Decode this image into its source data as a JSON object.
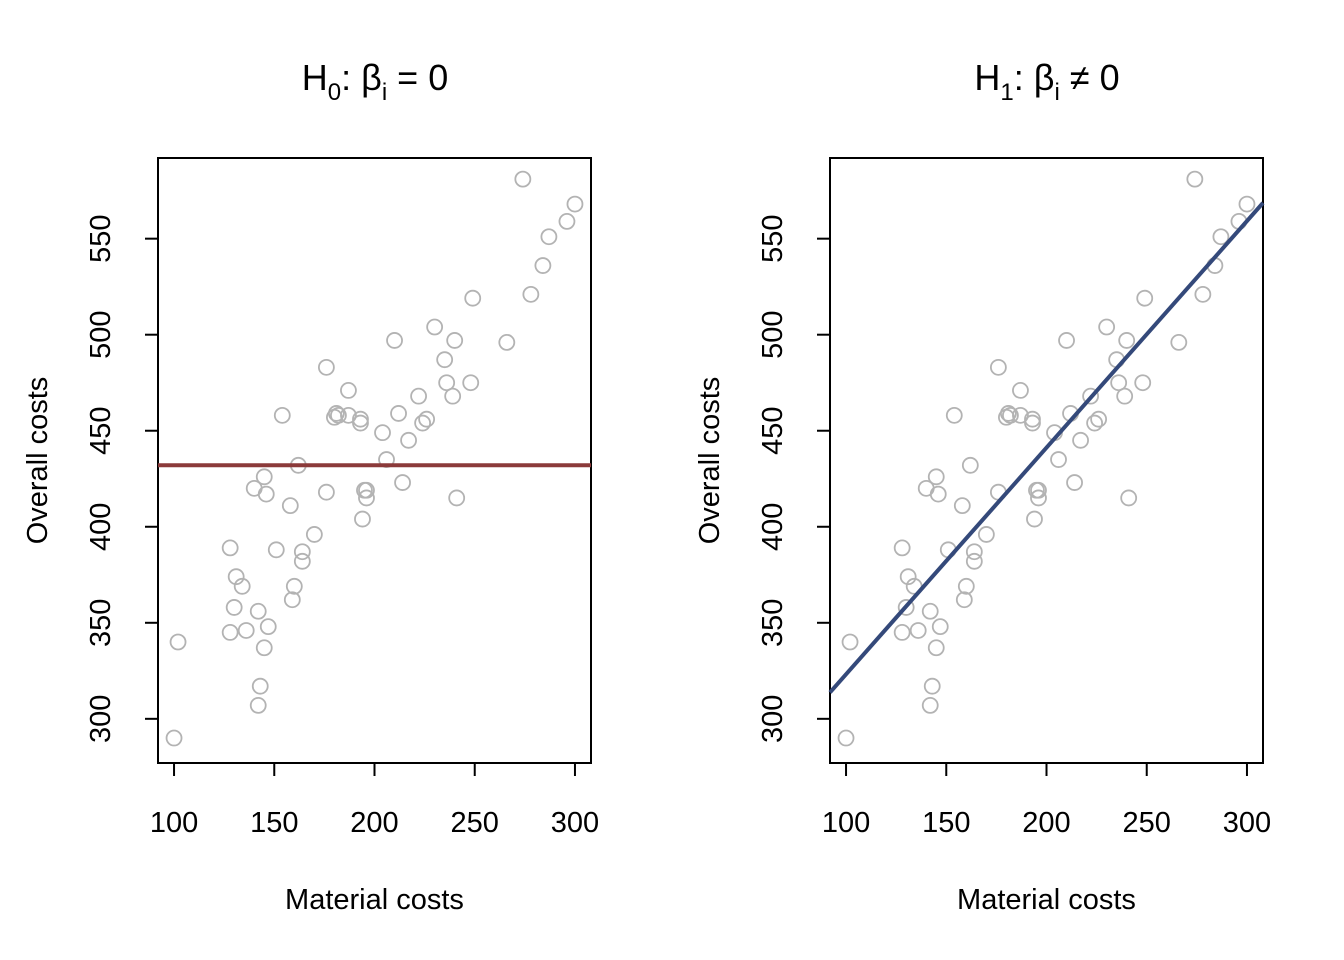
{
  "chart_data": [
    {
      "type": "scatter",
      "title": {
        "main": "H",
        "sub": "0",
        "rest": ": β",
        "sub2": "i",
        "tail": " = 0"
      },
      "xlabel": "Material costs",
      "ylabel": "Overall costs",
      "xlim": [
        92,
        308
      ],
      "ylim": [
        277,
        592
      ],
      "xticks": [
        100,
        150,
        200,
        250,
        300
      ],
      "yticks": [
        300,
        350,
        400,
        450,
        500,
        550
      ],
      "grid": false,
      "point_color": "#b3b3b3",
      "line": {
        "kind": "horizontal",
        "y": 432,
        "color": "#8b3a3a"
      },
      "points": [
        [
          100,
          290
        ],
        [
          102,
          340
        ],
        [
          128,
          389
        ],
        [
          128,
          345
        ],
        [
          130,
          358
        ],
        [
          131,
          374
        ],
        [
          134,
          369
        ],
        [
          136,
          346
        ],
        [
          140,
          420
        ],
        [
          142,
          307
        ],
        [
          142,
          356
        ],
        [
          143,
          317
        ],
        [
          145,
          426
        ],
        [
          145,
          337
        ],
        [
          146,
          417
        ],
        [
          147,
          348
        ],
        [
          151,
          388
        ],
        [
          154,
          458
        ],
        [
          158,
          411
        ],
        [
          159,
          362
        ],
        [
          160,
          369
        ],
        [
          162,
          432
        ],
        [
          164,
          382
        ],
        [
          164,
          387
        ],
        [
          170,
          396
        ],
        [
          176,
          483
        ],
        [
          176,
          418
        ],
        [
          180,
          457
        ],
        [
          181,
          459
        ],
        [
          182,
          458
        ],
        [
          187,
          471
        ],
        [
          187,
          458
        ],
        [
          193,
          456
        ],
        [
          193,
          454
        ],
        [
          194,
          404
        ],
        [
          195,
          419
        ],
        [
          196,
          415
        ],
        [
          196,
          419
        ],
        [
          204,
          449
        ],
        [
          206,
          435
        ],
        [
          210,
          497
        ],
        [
          212,
          459
        ],
        [
          214,
          423
        ],
        [
          217,
          445
        ],
        [
          222,
          468
        ],
        [
          224,
          454
        ],
        [
          226,
          456
        ],
        [
          230,
          504
        ],
        [
          235,
          487
        ],
        [
          236,
          475
        ],
        [
          239,
          468
        ],
        [
          240,
          497
        ],
        [
          241,
          415
        ],
        [
          248,
          475
        ],
        [
          249,
          519
        ],
        [
          266,
          496
        ],
        [
          274,
          581
        ],
        [
          278,
          521
        ],
        [
          284,
          536
        ],
        [
          287,
          551
        ],
        [
          296,
          559
        ],
        [
          300,
          568
        ]
      ]
    },
    {
      "type": "scatter",
      "title": {
        "main": "H",
        "sub": "1",
        "rest": ": β",
        "sub2": "i",
        "tail": " ≠ 0"
      },
      "xlabel": "Material costs",
      "ylabel": "Overall costs",
      "xlim": [
        92,
        308
      ],
      "ylim": [
        277,
        592
      ],
      "xticks": [
        100,
        150,
        200,
        250,
        300
      ],
      "yticks": [
        300,
        350,
        400,
        450,
        500,
        550
      ],
      "grid": false,
      "point_color": "#b3b3b3",
      "line": {
        "kind": "regression",
        "intercept": 205.2,
        "slope": 1.18,
        "color": "#34497a"
      },
      "points": [
        [
          100,
          290
        ],
        [
          102,
          340
        ],
        [
          128,
          389
        ],
        [
          128,
          345
        ],
        [
          130,
          358
        ],
        [
          131,
          374
        ],
        [
          134,
          369
        ],
        [
          136,
          346
        ],
        [
          140,
          420
        ],
        [
          142,
          307
        ],
        [
          142,
          356
        ],
        [
          143,
          317
        ],
        [
          145,
          426
        ],
        [
          145,
          337
        ],
        [
          146,
          417
        ],
        [
          147,
          348
        ],
        [
          151,
          388
        ],
        [
          154,
          458
        ],
        [
          158,
          411
        ],
        [
          159,
          362
        ],
        [
          160,
          369
        ],
        [
          162,
          432
        ],
        [
          164,
          382
        ],
        [
          164,
          387
        ],
        [
          170,
          396
        ],
        [
          176,
          483
        ],
        [
          176,
          418
        ],
        [
          180,
          457
        ],
        [
          181,
          459
        ],
        [
          182,
          458
        ],
        [
          187,
          471
        ],
        [
          187,
          458
        ],
        [
          193,
          456
        ],
        [
          193,
          454
        ],
        [
          194,
          404
        ],
        [
          195,
          419
        ],
        [
          196,
          415
        ],
        [
          196,
          419
        ],
        [
          204,
          449
        ],
        [
          206,
          435
        ],
        [
          210,
          497
        ],
        [
          212,
          459
        ],
        [
          214,
          423
        ],
        [
          217,
          445
        ],
        [
          222,
          468
        ],
        [
          224,
          454
        ],
        [
          226,
          456
        ],
        [
          230,
          504
        ],
        [
          235,
          487
        ],
        [
          236,
          475
        ],
        [
          239,
          468
        ],
        [
          240,
          497
        ],
        [
          241,
          415
        ],
        [
          248,
          475
        ],
        [
          249,
          519
        ],
        [
          266,
          496
        ],
        [
          274,
          581
        ],
        [
          278,
          521
        ],
        [
          284,
          536
        ],
        [
          287,
          551
        ],
        [
          296,
          559
        ],
        [
          300,
          568
        ]
      ]
    }
  ]
}
